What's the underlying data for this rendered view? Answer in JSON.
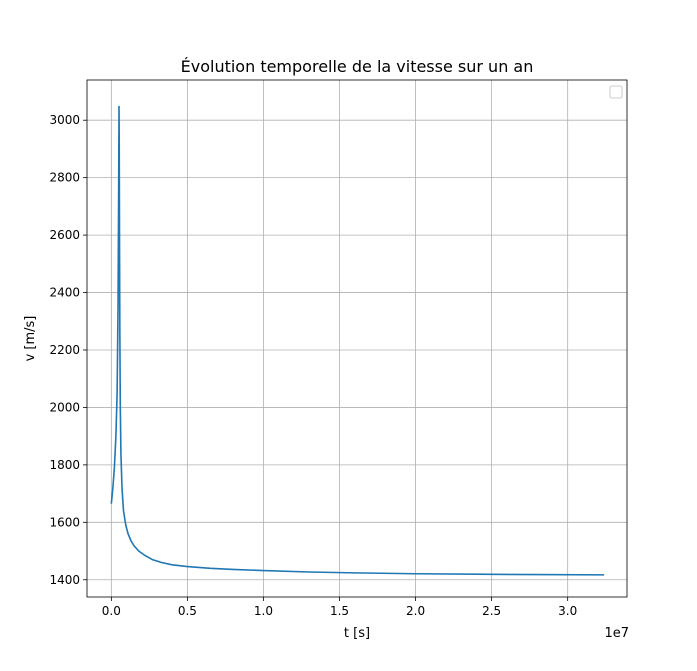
{
  "chart_data": {
    "type": "line",
    "title": "Évolution temporelle de la vitesse sur un an",
    "xlabel": "t [s]",
    "ylabel": "v [m/s]",
    "x_offset_label": "1e7",
    "xlim": [
      -1600000,
      33900000
    ],
    "ylim": [
      1340,
      3140
    ],
    "x_ticks": [
      0,
      5000000,
      10000000,
      15000000,
      20000000,
      25000000,
      30000000
    ],
    "x_tick_labels": [
      "0.0",
      "0.5",
      "1.0",
      "1.5",
      "2.0",
      "2.5",
      "3.0"
    ],
    "y_ticks": [
      1400,
      1600,
      1800,
      2000,
      2200,
      2400,
      2600,
      2800,
      3000
    ],
    "y_tick_labels": [
      "1400",
      "1600",
      "1800",
      "2000",
      "2200",
      "2400",
      "2600",
      "2800",
      "3000"
    ],
    "grid": true,
    "legend": "top-right",
    "line_color": "#1f77b4",
    "series": [
      {
        "values_x": [
          0,
          100000,
          200000,
          300000,
          380000,
          440000,
          480000,
          505000,
          520000,
          540000,
          560000,
          590000,
          630000,
          700000,
          800000,
          950000,
          1100000,
          1300000,
          1500000,
          1800000,
          2200000,
          2700000,
          3300000,
          4000000,
          5000000,
          6500000,
          8000000,
          10000000,
          13000000,
          16000000,
          20000000,
          25000000,
          28000000,
          32400000
        ],
        "values_y": [
          1665,
          1720,
          1790,
          1900,
          2050,
          2350,
          2750,
          3050,
          2900,
          2550,
          2250,
          2000,
          1840,
          1720,
          1640,
          1590,
          1560,
          1535,
          1518,
          1500,
          1485,
          1470,
          1460,
          1452,
          1446,
          1440,
          1436,
          1432,
          1427,
          1424,
          1421,
          1419,
          1418,
          1417
        ]
      }
    ]
  }
}
